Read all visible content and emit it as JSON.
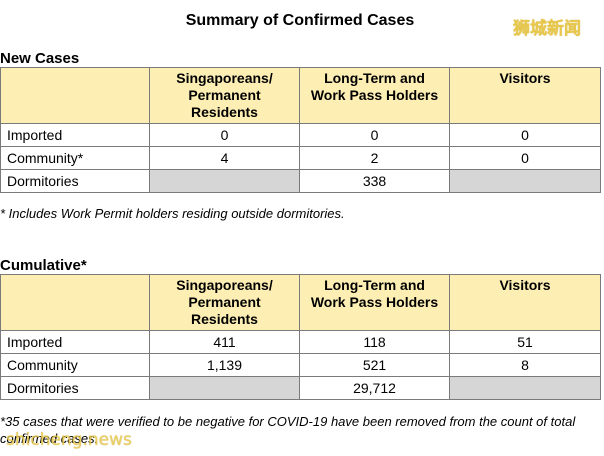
{
  "title": "Summary of Confirmed Cases",
  "watermark_top": "狮城新闻",
  "watermark_bottom": "shicheng.news",
  "headers": {
    "col1": "Singaporeans/\nPermanent\nResidents",
    "col2": "Long-Term and\nWork Pass Holders",
    "col3": "Visitors"
  },
  "new_cases": {
    "heading": "New Cases",
    "rows": [
      {
        "label": "Imported",
        "sg": "0",
        "ltp": "0",
        "vis": "0"
      },
      {
        "label": "Community*",
        "sg": "4",
        "ltp": "2",
        "vis": "0"
      },
      {
        "label": "Dormitories",
        "sg": "",
        "ltp": "338",
        "vis": ""
      }
    ],
    "footnote": "* Includes Work Permit holders residing outside dormitories."
  },
  "cumulative": {
    "heading": "Cumulative*",
    "rows": [
      {
        "label": "Imported",
        "sg": "411",
        "ltp": "118",
        "vis": "51"
      },
      {
        "label": "Community",
        "sg": "1,139",
        "ltp": "521",
        "vis": "8"
      },
      {
        "label": "Dormitories",
        "sg": "",
        "ltp": "29,712",
        "vis": ""
      }
    ],
    "footnote": "*35 cases that were verified to be negative for COVID-19 have been removed from the count of total confirmed cases."
  }
}
